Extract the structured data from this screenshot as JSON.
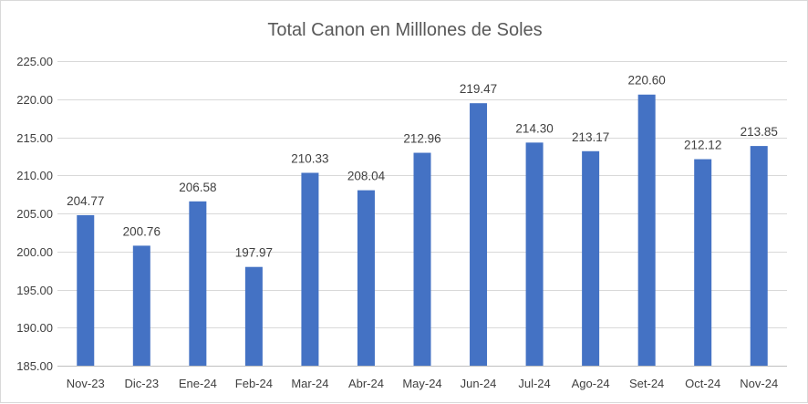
{
  "chart_data": {
    "type": "bar",
    "title": "Total Canon en Milllones de Soles",
    "xlabel": "",
    "ylabel": "",
    "categories": [
      "Nov-23",
      "Dic-23",
      "Ene-24",
      "Feb-24",
      "Mar-24",
      "Abr-24",
      "May-24",
      "Jun-24",
      "Jul-24",
      "Ago-24",
      "Set-24",
      "Oct-24",
      "Nov-24"
    ],
    "values": [
      204.77,
      200.76,
      206.58,
      197.97,
      210.33,
      208.04,
      212.96,
      219.47,
      214.3,
      213.17,
      220.6,
      212.12,
      213.85
    ],
    "value_labels": [
      "204.77",
      "200.76",
      "206.58",
      "197.97",
      "210.33",
      "208.04",
      "212.96",
      "219.47",
      "214.30",
      "213.17",
      "220.60",
      "212.12",
      "213.85"
    ],
    "ylim": [
      185,
      225
    ],
    "yticks": [
      185,
      190,
      195,
      200,
      205,
      210,
      215,
      220,
      225
    ],
    "ytick_labels": [
      "185.00",
      "190.00",
      "195.00",
      "200.00",
      "205.00",
      "210.00",
      "215.00",
      "220.00",
      "225.00"
    ],
    "grid": true,
    "legend": "none",
    "bar_color": "#4472c4"
  }
}
